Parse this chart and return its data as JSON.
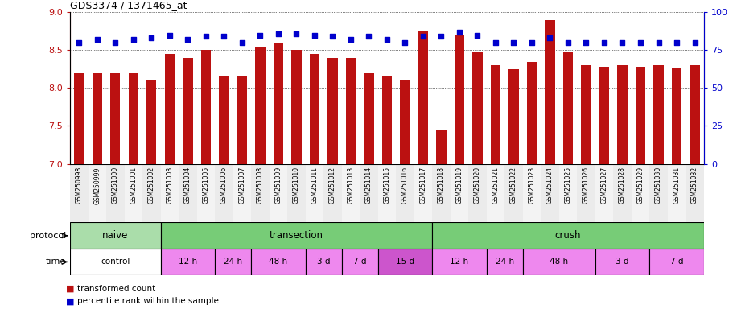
{
  "title": "GDS3374 / 1371465_at",
  "samples": [
    "GSM250998",
    "GSM250999",
    "GSM251000",
    "GSM251001",
    "GSM251002",
    "GSM251003",
    "GSM251004",
    "GSM251005",
    "GSM251006",
    "GSM251007",
    "GSM251008",
    "GSM251009",
    "GSM251010",
    "GSM251011",
    "GSM251012",
    "GSM251013",
    "GSM251014",
    "GSM251015",
    "GSM251016",
    "GSM251017",
    "GSM251018",
    "GSM251019",
    "GSM251020",
    "GSM251021",
    "GSM251022",
    "GSM251023",
    "GSM251024",
    "GSM251025",
    "GSM251026",
    "GSM251027",
    "GSM251028",
    "GSM251029",
    "GSM251030",
    "GSM251031",
    "GSM251032"
  ],
  "transformed_count": [
    8.2,
    8.2,
    8.2,
    8.2,
    8.1,
    8.45,
    8.4,
    8.5,
    8.15,
    8.15,
    8.55,
    8.6,
    8.5,
    8.45,
    8.4,
    8.4,
    8.2,
    8.15,
    8.1,
    8.75,
    7.45,
    8.7,
    8.47,
    8.3,
    8.25,
    8.35,
    8.9,
    8.47,
    8.3,
    8.28,
    8.3,
    8.28,
    8.3,
    8.27,
    8.3
  ],
  "percentile_rank": [
    80,
    82,
    80,
    82,
    83,
    85,
    82,
    84,
    84,
    80,
    85,
    86,
    86,
    85,
    84,
    82,
    84,
    82,
    80,
    84,
    84,
    87,
    85,
    80,
    80,
    80,
    83,
    80,
    80,
    80,
    80,
    80,
    80,
    80,
    80
  ],
  "ylim_left": [
    7,
    9
  ],
  "ylim_right": [
    0,
    100
  ],
  "yticks_left": [
    7,
    7.5,
    8,
    8.5,
    9
  ],
  "yticks_right": [
    0,
    25,
    50,
    75,
    100
  ],
  "bar_color": "#bb1111",
  "dot_color": "#0000cc",
  "bar_width": 0.55,
  "protocol_groups": [
    {
      "label": "naive",
      "start": 0,
      "end": 4,
      "color": "#aaddaa"
    },
    {
      "label": "transection",
      "start": 5,
      "end": 19,
      "color": "#77cc77"
    },
    {
      "label": "crush",
      "start": 20,
      "end": 34,
      "color": "#77cc77"
    }
  ],
  "time_groups": [
    {
      "label": "control",
      "start": 0,
      "end": 4,
      "color": "#ffffff"
    },
    {
      "label": "12 h",
      "start": 5,
      "end": 7,
      "color": "#ee88ee"
    },
    {
      "label": "24 h",
      "start": 8,
      "end": 9,
      "color": "#ee88ee"
    },
    {
      "label": "48 h",
      "start": 10,
      "end": 12,
      "color": "#ee88ee"
    },
    {
      "label": "3 d",
      "start": 13,
      "end": 14,
      "color": "#ee88ee"
    },
    {
      "label": "7 d",
      "start": 15,
      "end": 16,
      "color": "#ee88ee"
    },
    {
      "label": "15 d",
      "start": 17,
      "end": 19,
      "color": "#cc55cc"
    },
    {
      "label": "12 h",
      "start": 20,
      "end": 22,
      "color": "#ee88ee"
    },
    {
      "label": "24 h",
      "start": 23,
      "end": 24,
      "color": "#ee88ee"
    },
    {
      "label": "48 h",
      "start": 25,
      "end": 28,
      "color": "#ee88ee"
    },
    {
      "label": "3 d",
      "start": 29,
      "end": 31,
      "color": "#ee88ee"
    },
    {
      "label": "7 d",
      "start": 32,
      "end": 34,
      "color": "#ee88ee"
    }
  ],
  "legend_items": [
    {
      "label": "transformed count",
      "color": "#bb1111"
    },
    {
      "label": "percentile rank within the sample",
      "color": "#0000cc"
    }
  ]
}
